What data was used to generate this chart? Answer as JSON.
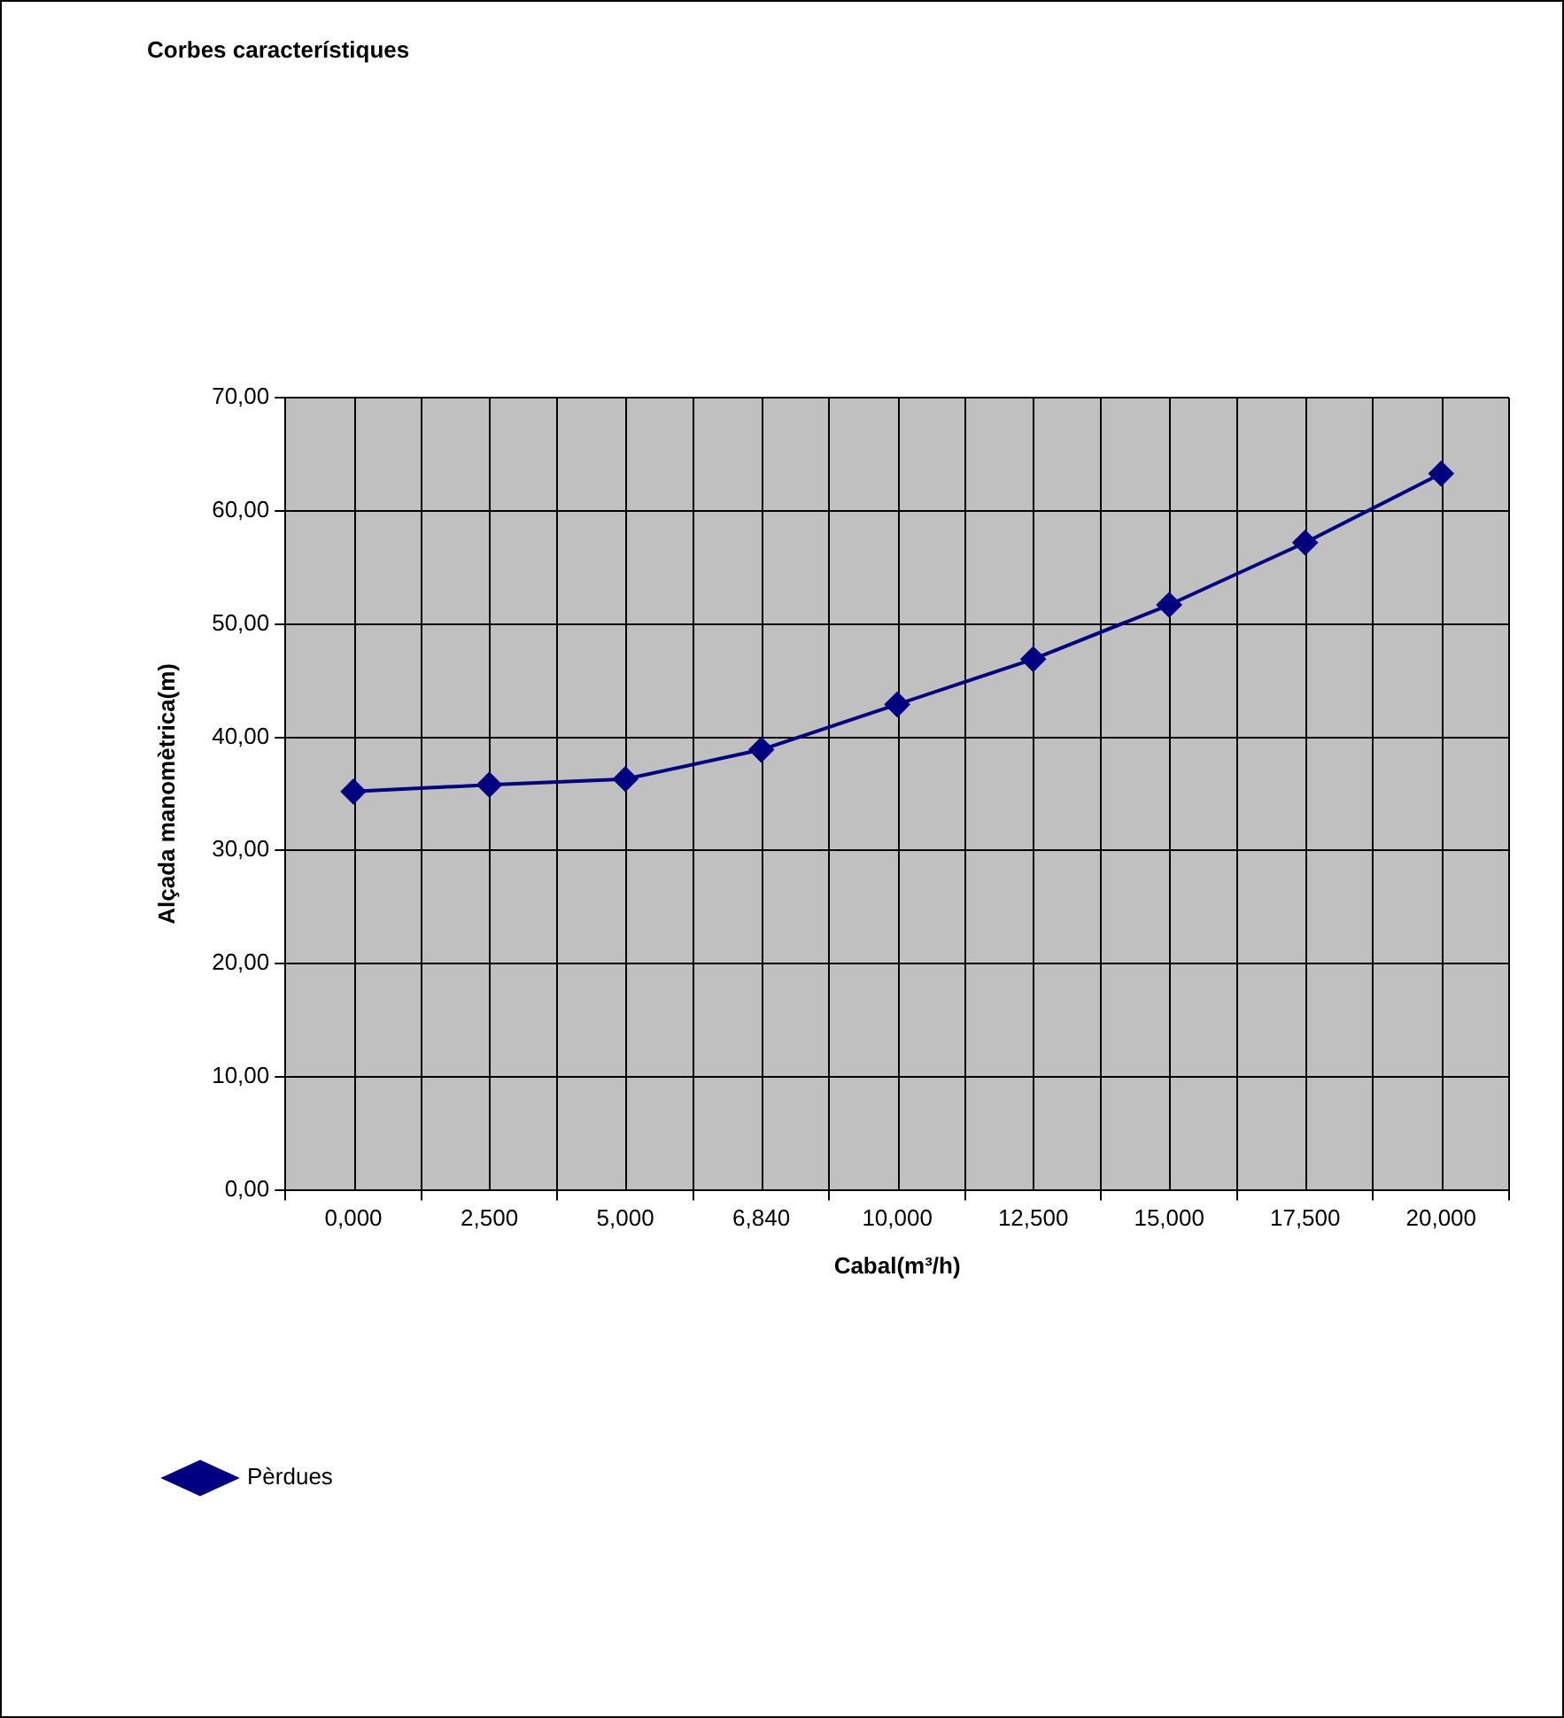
{
  "chart_data": {
    "type": "line",
    "title": "Corbes característiques",
    "xlabel": "Cabal(m³/h)",
    "ylabel": "Alçada manomètrica(m)",
    "categories": [
      "0,000",
      "2,500",
      "5,000",
      "6,840",
      "10,000",
      "12,500",
      "15,000",
      "17,500",
      "20,000"
    ],
    "series": [
      {
        "name": "Pèrdues",
        "color": "#000080",
        "values": [
          35.2,
          35.8,
          36.3,
          38.9,
          42.9,
          46.9,
          51.7,
          57.2,
          63.3
        ]
      }
    ],
    "ylim": [
      0,
      70
    ],
    "yticks": [
      {
        "value": 0,
        "label": "0,00"
      },
      {
        "value": 10,
        "label": "10,00"
      },
      {
        "value": 20,
        "label": "20,00"
      },
      {
        "value": 30,
        "label": "30,00"
      },
      {
        "value": 40,
        "label": "40,00"
      },
      {
        "value": 50,
        "label": "50,00"
      },
      {
        "value": 60,
        "label": "60,00"
      },
      {
        "value": 70,
        "label": "70,00"
      }
    ],
    "grid": true,
    "legend": "bottom",
    "marker": "diamond",
    "line_style": "solid"
  }
}
